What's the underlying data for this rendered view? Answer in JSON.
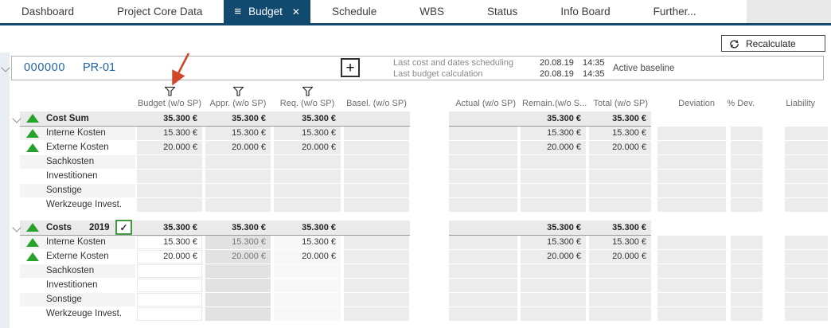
{
  "colors": {
    "active_tab": "#114a6e",
    "project_link_blue": "#2063a5",
    "trend_green": "#27a22b",
    "checkbox_green": "#3f9a43",
    "readonly_cell_gray": "#ececec",
    "group_band_gray": "#eaeaea",
    "annotation_orange": "#d0482a"
  },
  "tabs": {
    "items": [
      {
        "label": "Dashboard",
        "active": false
      },
      {
        "label": "Project Core Data",
        "active": false
      },
      {
        "label": "Budget",
        "active": true
      },
      {
        "label": "Schedule",
        "active": false
      },
      {
        "label": "WBS",
        "active": false
      },
      {
        "label": "Status",
        "active": false
      },
      {
        "label": "Info Board",
        "active": false
      },
      {
        "label": "Further...",
        "active": false
      }
    ]
  },
  "toolbar": {
    "recalculate": "Recalculate"
  },
  "project": {
    "number": "000000",
    "code": "PR-01",
    "add_button_label": "+",
    "status_lines": [
      {
        "label": "Last cost and dates scheduling",
        "date": "20.08.19",
        "time": "14:35"
      },
      {
        "label": "Last budget calculation",
        "date": "20.08.19",
        "time": "14:35"
      }
    ],
    "baseline_label": "Active baseline"
  },
  "table": {
    "columns": [
      "Budget (w/o SP)",
      "Appr. (w/o SP)",
      "Req. (w/o SP)",
      "Basel. (w/o SP)",
      "Actual (w/o SP)",
      "Remain.(w/o S...",
      "Total (w/o SP)",
      "Deviation",
      "% Dev.",
      "Liability"
    ],
    "filtered_column_indexes": [
      0,
      1,
      2
    ],
    "groups": [
      {
        "label": "Cost Sum",
        "year": "",
        "has_checkbox": false,
        "checkbox_checked": false,
        "header_values": [
          "35.300 €",
          "35.300 €",
          "35.300 €",
          "",
          "",
          "35.300 €",
          "35.300 €",
          "",
          "",
          ""
        ],
        "rows": [
          {
            "label": "Interne Kosten",
            "trend_icon": true,
            "values": [
              "15.300 €",
              "15.300 €",
              "15.300 €",
              "",
              "",
              "15.300 €",
              "15.300 €",
              "",
              "",
              ""
            ]
          },
          {
            "label": "Externe Kosten",
            "trend_icon": true,
            "values": [
              "20.000 €",
              "20.000 €",
              "20.000 €",
              "",
              "",
              "20.000 €",
              "20.000 €",
              "",
              "",
              ""
            ]
          },
          {
            "label": "Sachkosten",
            "trend_icon": false,
            "values": [
              "",
              "",
              "",
              "",
              "",
              "",
              "",
              "",
              "",
              ""
            ]
          },
          {
            "label": "Investitionen",
            "trend_icon": false,
            "values": [
              "",
              "",
              "",
              "",
              "",
              "",
              "",
              "",
              "",
              ""
            ]
          },
          {
            "label": "Sonstige",
            "trend_icon": false,
            "values": [
              "",
              "",
              "",
              "",
              "",
              "",
              "",
              "",
              "",
              ""
            ]
          },
          {
            "label": "Werkzeuge Invest.",
            "trend_icon": false,
            "values": [
              "",
              "",
              "",
              "",
              "",
              "",
              "",
              "",
              "",
              ""
            ]
          }
        ]
      },
      {
        "label": "Costs",
        "year": "2019",
        "has_checkbox": true,
        "checkbox_checked": true,
        "checkbox_glyph": "✓",
        "header_values": [
          "35.300 €",
          "35.300 €",
          "35.300 €",
          "",
          "",
          "35.300 €",
          "35.300 €",
          "",
          "",
          ""
        ],
        "rows": [
          {
            "label": "Interne Kosten",
            "trend_icon": true,
            "values": [
              "15.300 €",
              "15.300 €",
              "15.300 €",
              "",
              "",
              "15.300 €",
              "15.300 €",
              "",
              "",
              ""
            ]
          },
          {
            "label": "Externe Kosten",
            "trend_icon": true,
            "values": [
              "20.000 €",
              "20.000 €",
              "20.000 €",
              "",
              "",
              "20.000 €",
              "20.000 €",
              "",
              "",
              ""
            ]
          },
          {
            "label": "Sachkosten",
            "trend_icon": false,
            "values": [
              "",
              "",
              "",
              "",
              "",
              "",
              "",
              "",
              "",
              ""
            ]
          },
          {
            "label": "Investitionen",
            "trend_icon": false,
            "values": [
              "",
              "",
              "",
              "",
              "",
              "",
              "",
              "",
              "",
              ""
            ]
          },
          {
            "label": "Sonstige",
            "trend_icon": false,
            "values": [
              "",
              "",
              "",
              "",
              "",
              "",
              "",
              "",
              "",
              ""
            ]
          },
          {
            "label": "Werkzeuge Invest.",
            "trend_icon": false,
            "values": [
              "",
              "",
              "",
              "",
              "",
              "",
              "",
              "",
              "",
              ""
            ]
          }
        ]
      }
    ]
  },
  "annotation": {
    "type": "arrow",
    "color": "#d0482a",
    "points_to": "budget-column-filter-icon"
  }
}
